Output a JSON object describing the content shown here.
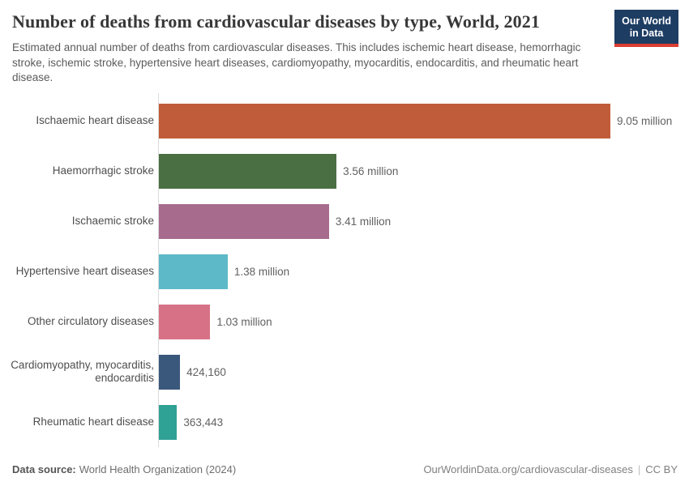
{
  "header": {
    "title": "Number of deaths from cardiovascular diseases by type, World, 2021",
    "subtitle": "Estimated annual number of deaths from cardiovascular diseases. This includes ischemic heart disease, hemorrhagic stroke, ischemic stroke, hypertensive heart diseases, cardiomyopathy, myocarditis, endocarditis, and rheumatic heart disease."
  },
  "logo": {
    "line1": "Our World",
    "line2": "in Data",
    "bg_color": "#1d3d63",
    "accent_color": "#dc3e32"
  },
  "chart_data": {
    "type": "bar",
    "orientation": "horizontal",
    "title": "Number of deaths from cardiovascular diseases by type, World, 2021",
    "categories": [
      "Ischaemic heart disease",
      "Haemorrhagic stroke",
      "Ischaemic stroke",
      "Hypertensive heart diseases",
      "Other circulatory diseases",
      "Cardiomyopathy, myocarditis, endocarditis",
      "Rheumatic heart disease"
    ],
    "values": [
      9050000,
      3560000,
      3410000,
      1380000,
      1030000,
      424160,
      363443
    ],
    "value_labels": [
      "9.05 million",
      "3.56 million",
      "3.41 million",
      "1.38 million",
      "1.03 million",
      "424,160",
      "363,443"
    ],
    "bar_colors": [
      "#C05C39",
      "#4A6F42",
      "#A76B8D",
      "#5DB9C7",
      "#D67186",
      "#3A577C",
      "#2FA195"
    ],
    "xlim": [
      0,
      9050000
    ],
    "grid": "off",
    "legend": "none"
  },
  "footer": {
    "datasource_label": "Data source:",
    "datasource_value": "World Health Organization (2024)",
    "url": "OurWorldinData.org/cardiovascular-diseases",
    "separator": "|",
    "license": "CC BY"
  }
}
